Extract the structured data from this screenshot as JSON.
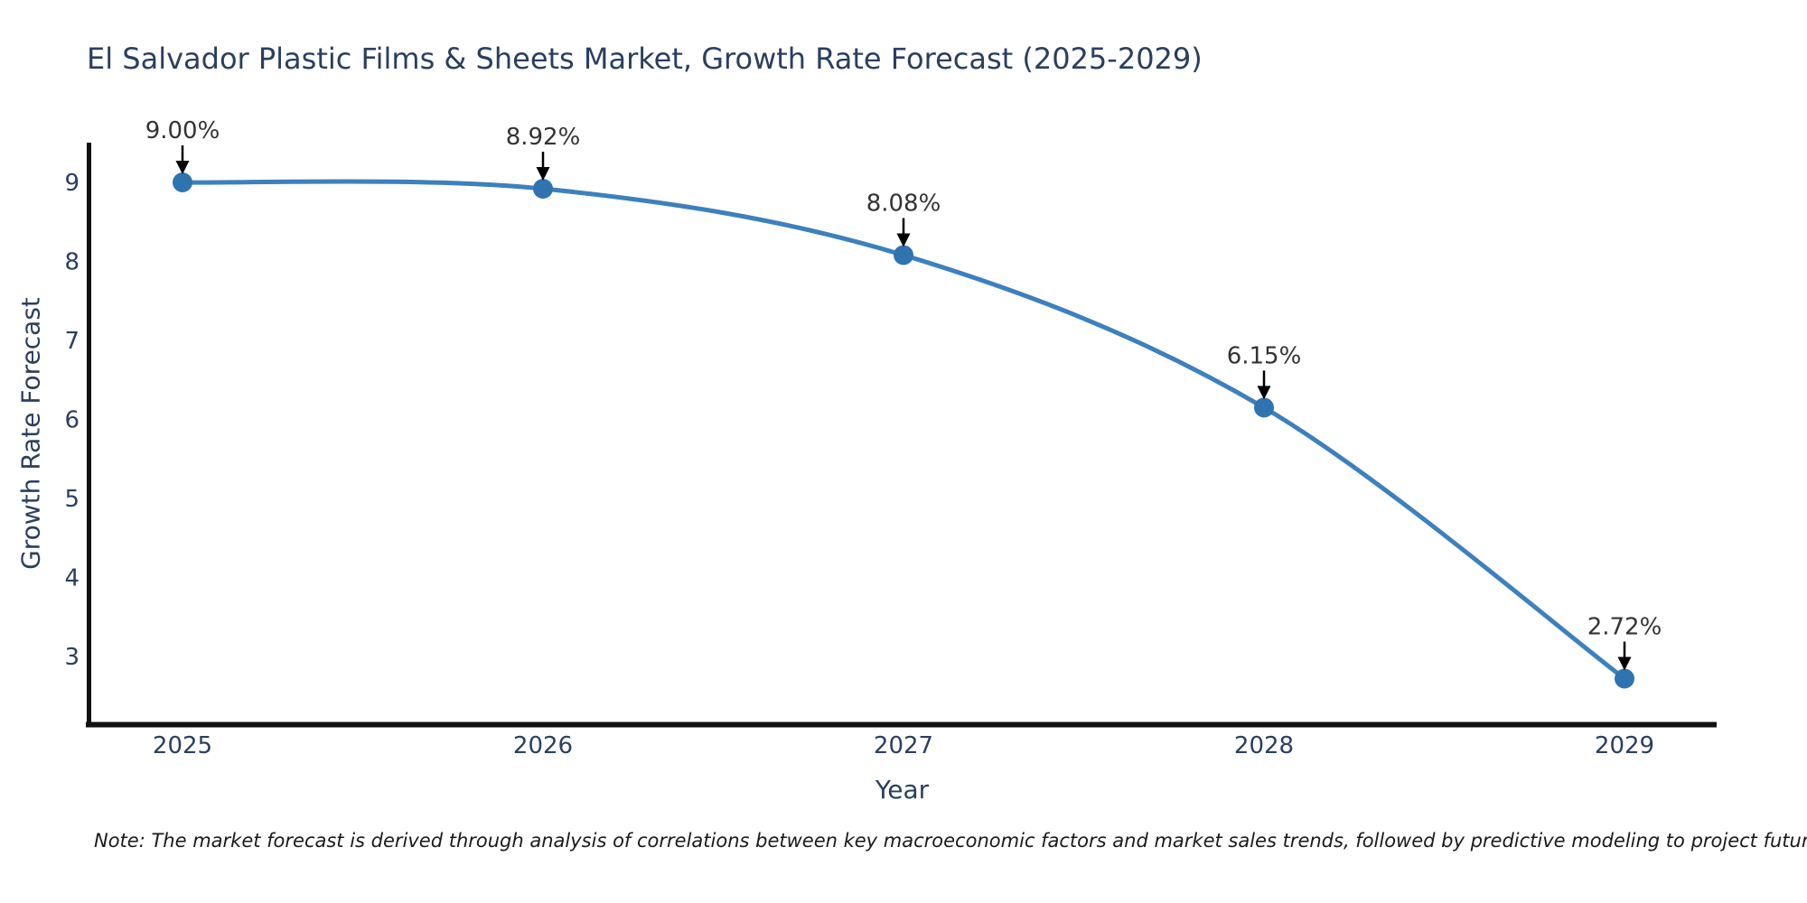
{
  "chart_data": {
    "type": "line",
    "title": "El Salvador Plastic Films & Sheets Market, Growth Rate Forecast (2025-2029)",
    "categories": [
      "2025",
      "2026",
      "2027",
      "2028",
      "2029"
    ],
    "values": [
      9.0,
      8.92,
      8.08,
      6.15,
      2.72
    ],
    "point_labels": [
      "9.00%",
      "8.92%",
      "8.08%",
      "6.15%",
      "2.72%"
    ],
    "xlabel": "Year",
    "ylabel": "Growth Rate Forecast",
    "yticks": [
      "9",
      "8",
      "7",
      "6",
      "5",
      "4",
      "3"
    ],
    "ytick_values": [
      9,
      8,
      7,
      6,
      5,
      4,
      3
    ],
    "ylim": [
      2.1,
      9.5
    ],
    "line_shape": "spline",
    "grid": false,
    "legend": "none",
    "note": "Note: The market forecast is derived through analysis of correlations between key macroeconomic factors and market sales trends, followed by predictive modeling to project future sales.",
    "colors": {
      "line": "#3d80bd",
      "marker": "#2f74b0",
      "axis": "#111111",
      "text": "#2a3f5f",
      "annotation": "#333333",
      "arrow": "#000000",
      "note_text": "#1a1a1a",
      "background": "#ffffff"
    }
  }
}
